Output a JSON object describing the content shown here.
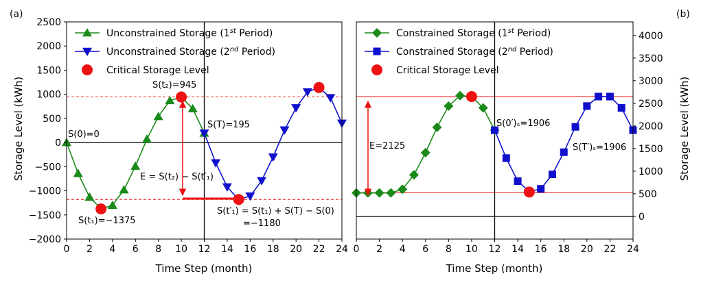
{
  "chart_data": [
    {
      "panel_label": "(a)",
      "type": "line",
      "xlabel": "Time Step (month)",
      "ylabel": "Storage Level (kWh)",
      "xlim": [
        0,
        24
      ],
      "ylim": [
        -2000,
        2500
      ],
      "xticks": [
        0,
        2,
        4,
        6,
        8,
        10,
        12,
        14,
        16,
        18,
        20,
        22,
        24
      ],
      "yticks": [
        -2000,
        -1500,
        -1000,
        -500,
        0,
        500,
        1000,
        1500,
        2000,
        2500
      ],
      "legend_position": "top-left",
      "series": [
        {
          "name": "Unconstrained Storage (1st Period)",
          "label_main": "Unconstrained Storage (1",
          "label_sup": "st",
          "label_end": " Period)",
          "color": "#1a8a1a",
          "marker": "triangle-up",
          "x": [
            0,
            1,
            2,
            3,
            4,
            5,
            6,
            7,
            8,
            9,
            10,
            11,
            12
          ],
          "y": [
            0,
            -640,
            -1130,
            -1375,
            -1300,
            -980,
            -490,
            70,
            540,
            870,
            945,
            700,
            195
          ]
        },
        {
          "name": "Unconstrained Storage (2nd Period)",
          "label_main": "Unconstrained Storage (2",
          "label_sup": "nd",
          "label_end": " Period)",
          "color": "#1010cc",
          "marker": "triangle-down",
          "x": [
            12,
            13,
            14,
            15,
            16,
            17,
            18,
            19,
            20,
            21,
            22,
            23,
            24
          ],
          "y": [
            195,
            -420,
            -920,
            -1180,
            -1110,
            -790,
            -300,
            260,
            720,
            1050,
            1140,
            930,
            400
          ]
        },
        {
          "name": "Critical Storage Level",
          "color": "#ee1111",
          "marker": "circle",
          "x": [
            3,
            10,
            15,
            22
          ],
          "y": [
            -1375,
            945,
            -1180,
            1140
          ]
        }
      ],
      "reference_lines": [
        {
          "type": "horizontal",
          "y": 945,
          "color": "#ee1111",
          "style": "dashed"
        },
        {
          "type": "horizontal",
          "y": -1180,
          "color": "#ee1111",
          "style": "dashed"
        },
        {
          "type": "horizontal",
          "y": 0,
          "color": "#000000",
          "style": "solid"
        },
        {
          "type": "vertical",
          "x": 12,
          "color": "#000000",
          "style": "solid"
        }
      ],
      "annotations": {
        "s0": "S(0)=0",
        "st2": "S(t₂)=945",
        "sT": "S(T)=195",
        "st1": "S(t₁)=−1375",
        "E_formula": "E = S(t₂) − S(t′₁)",
        "st1p_formula": "S(t′₁) = S(t₁) + S(T) − S(0)",
        "st1p_value": "=−1180"
      }
    },
    {
      "panel_label": "(b)",
      "type": "line",
      "xlabel": "Time Step (month)",
      "ylabel": "Storage Level (kWh)",
      "xlim": [
        0,
        24
      ],
      "ylim": [
        -500,
        4300
      ],
      "xticks": [
        0,
        2,
        4,
        6,
        8,
        10,
        12,
        14,
        16,
        18,
        20,
        22,
        24
      ],
      "yticks": [
        0,
        500,
        1000,
        1500,
        2000,
        2500,
        3000,
        3500,
        4000
      ],
      "legend_position": "top-left",
      "series": [
        {
          "name": "Constrained Storage (1st Period)",
          "label_main": "Constrained Storage (1",
          "label_sup": "st",
          "label_end": " Period)",
          "color": "#1a8a1a",
          "marker": "diamond",
          "x": [
            0,
            1,
            2,
            3,
            4,
            5,
            6,
            7,
            8,
            9,
            10,
            11,
            12
          ],
          "y": [
            520,
            520,
            520,
            520,
            600,
            920,
            1410,
            1970,
            2440,
            2670,
            2650,
            2400,
            1906
          ]
        },
        {
          "name": "Constrained Storage (2nd Period)",
          "label_main": "Constrained Storage (2",
          "label_sup": "nd",
          "label_end": " Period)",
          "color": "#1010cc",
          "marker": "square",
          "x": [
            12,
            13,
            14,
            15,
            16,
            17,
            18,
            19,
            20,
            21,
            22,
            23,
            24
          ],
          "y": [
            1906,
            1290,
            780,
            550,
            610,
            930,
            1420,
            1980,
            2440,
            2650,
            2650,
            2400,
            1906
          ]
        },
        {
          "name": "Critical Storage Level",
          "color": "#ee1111",
          "marker": "circle",
          "x": [
            10,
            15
          ],
          "y": [
            2650,
            540
          ]
        }
      ],
      "reference_lines": [
        {
          "type": "horizontal",
          "y": 2650,
          "color": "#ee1111",
          "style": "solid"
        },
        {
          "type": "horizontal",
          "y": 525,
          "color": "#ee1111",
          "style": "solid"
        },
        {
          "type": "horizontal",
          "y": 0,
          "color": "#000000",
          "style": "solid"
        },
        {
          "type": "vertical",
          "x": 12,
          "color": "#000000",
          "style": "solid"
        }
      ],
      "annotations": {
        "E": "E=2125",
        "s0s": "S(0′)ₛ=1906",
        "sTs": "S(T′)ₛ=1906"
      }
    }
  ]
}
